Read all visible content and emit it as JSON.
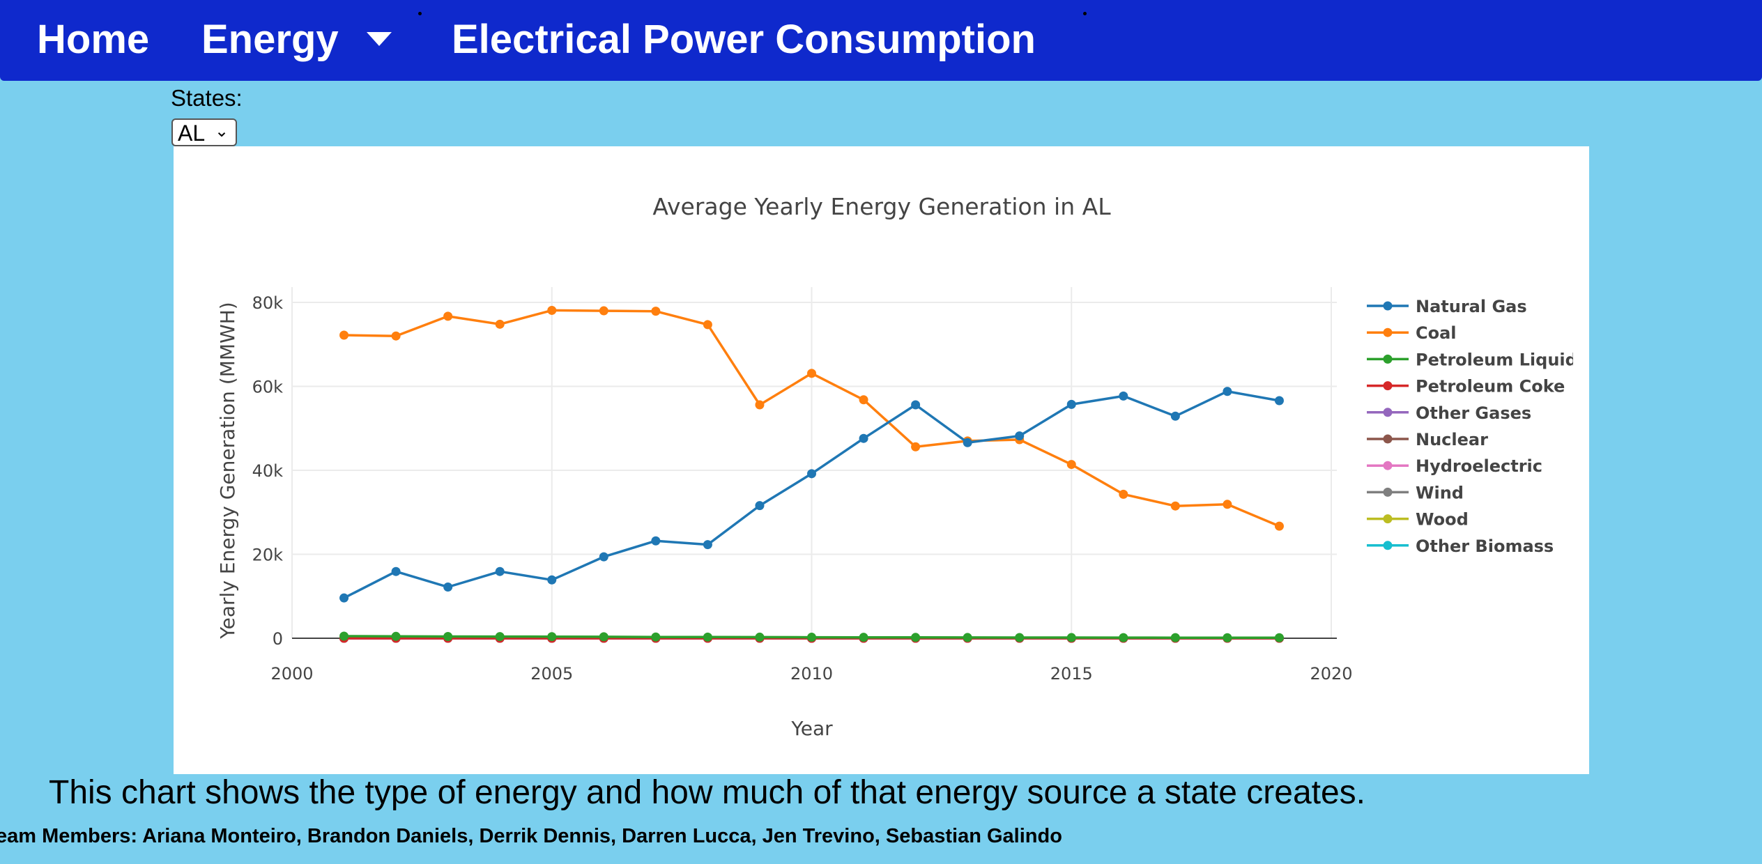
{
  "nav": {
    "home_label": "Home",
    "energy_label": "Energy",
    "title_label": "Electrical Power Consumption"
  },
  "states": {
    "label": "States:",
    "selected": "AL",
    "chevron": "⌄"
  },
  "description": "This chart shows the type of energy and how much of that energy source a state creates.",
  "team": "eam Members: Ariana Monteiro, Brandon Daniels, Derrik Dennis, Darren Lucca, Jen Trevino, Sebastian Galindo",
  "chart_data": {
    "type": "line",
    "title": "Average Yearly Energy Generation in AL",
    "xlabel": "Year",
    "ylabel": "Yearly Energy Generation (MMWH)",
    "xlim": [
      2000,
      2020
    ],
    "ylim": [
      0,
      80000
    ],
    "x_ticks": [
      2000,
      2005,
      2010,
      2015,
      2020
    ],
    "x_tick_labels": [
      "2000",
      "2005",
      "2010",
      "2015",
      "2020"
    ],
    "y_ticks": [
      0,
      20000,
      40000,
      60000,
      80000
    ],
    "y_tick_labels": [
      "0",
      "20k",
      "40k",
      "60k",
      "80k"
    ],
    "grid": true,
    "legend_position": "right",
    "x": [
      2001,
      2002,
      2003,
      2004,
      2005,
      2006,
      2007,
      2008,
      2009,
      2010,
      2011,
      2012,
      2013,
      2014,
      2015,
      2016,
      2017,
      2018,
      2019
    ],
    "series": [
      {
        "name": "Natural Gas",
        "color": "#1f77b4",
        "values": [
          9600,
          15900,
          12200,
          15900,
          13900,
          19400,
          23200,
          22300,
          31600,
          39200,
          47600,
          55600,
          46600,
          48200,
          55700,
          57700,
          52900,
          58800,
          56600
        ]
      },
      {
        "name": "Coal",
        "color": "#ff7f0e",
        "values": [
          72200,
          72000,
          76700,
          74800,
          78100,
          78000,
          77900,
          74700,
          55600,
          63100,
          56800,
          45600,
          47000,
          47300,
          41400,
          34300,
          31500,
          31900,
          26700
        ]
      },
      {
        "name": "Petroleum Liquid",
        "color": "#2ca02c",
        "values": [
          500,
          450,
          420,
          400,
          380,
          350,
          300,
          280,
          260,
          240,
          220,
          200,
          180,
          170,
          160,
          150,
          140,
          130,
          120
        ]
      },
      {
        "name": "Petroleum Coke",
        "color": "#d62728",
        "values": [
          0,
          0,
          0,
          0,
          0,
          0,
          0,
          0,
          0,
          0,
          0,
          0,
          0,
          0,
          0,
          0,
          0,
          0,
          0
        ]
      },
      {
        "name": "Other Gases",
        "color": "#9467bd",
        "values": [
          0,
          0,
          0,
          0,
          0,
          0,
          0,
          0,
          0,
          0,
          0,
          0,
          0,
          0,
          0,
          0,
          0,
          0,
          0
        ]
      },
      {
        "name": "Nuclear",
        "color": "#8c564b",
        "values": [
          0,
          0,
          0,
          0,
          0,
          0,
          0,
          0,
          0,
          0,
          0,
          0,
          0,
          0,
          0,
          0,
          0,
          0,
          0
        ]
      },
      {
        "name": "Hydroelectric",
        "color": "#e377c2",
        "values": [
          0,
          0,
          0,
          0,
          0,
          0,
          0,
          0,
          0,
          0,
          0,
          0,
          0,
          0,
          0,
          0,
          0,
          0,
          0
        ]
      },
      {
        "name": "Wind",
        "color": "#7f7f7f",
        "values": [
          0,
          0,
          0,
          0,
          0,
          0,
          0,
          0,
          0,
          0,
          0,
          0,
          0,
          0,
          0,
          0,
          0,
          0,
          0
        ]
      },
      {
        "name": "Wood",
        "color": "#bcbd22",
        "values": [
          0,
          0,
          0,
          0,
          0,
          0,
          0,
          0,
          0,
          0,
          0,
          0,
          0,
          0,
          0,
          0,
          0,
          0,
          0
        ]
      },
      {
        "name": "Other Biomass",
        "color": "#17becf",
        "values": [
          0,
          0,
          0,
          0,
          0,
          0,
          0,
          0,
          0,
          0,
          0,
          0,
          0,
          0,
          0,
          0,
          0,
          0,
          0
        ]
      }
    ]
  }
}
